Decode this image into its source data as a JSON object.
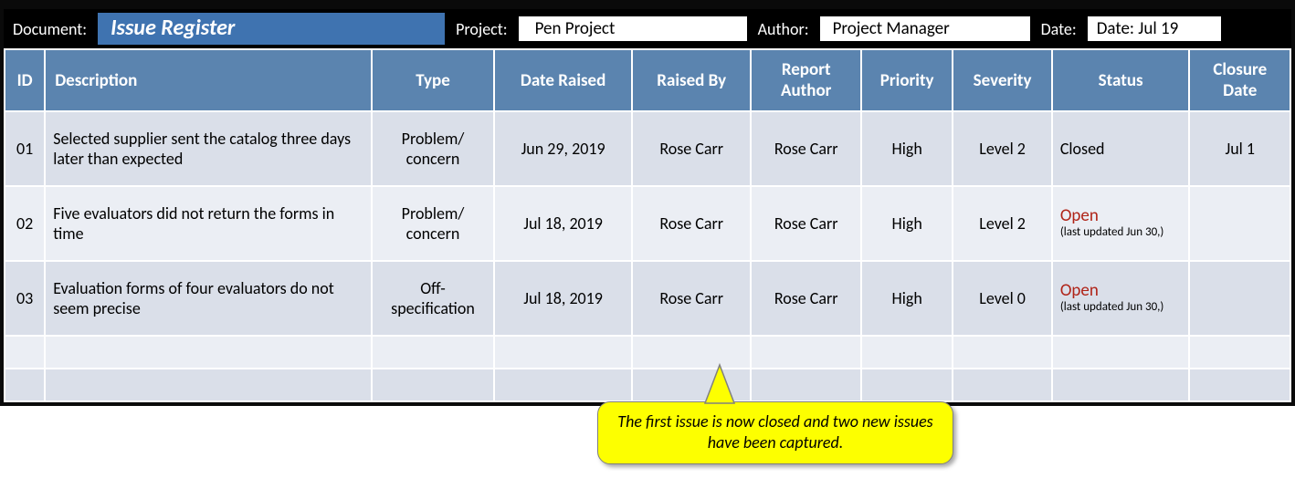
{
  "meta": {
    "document_label": "Document:",
    "document_title": "Issue Register",
    "project_label": "Project:",
    "project_value": "Pen Project",
    "author_label": "Author:",
    "author_value": "Project Manager",
    "date_label": "Date:",
    "date_value": "Date: Jul 19"
  },
  "columns": {
    "id": "ID",
    "description": "Description",
    "type": "Type",
    "date_raised": "Date Raised",
    "raised_by": "Raised By",
    "report_author": "Report Author",
    "priority": "Priority",
    "severity": "Severity",
    "status": "Status",
    "closure_date": "Closure Date"
  },
  "rows": [
    {
      "id": "01",
      "description": "Selected supplier sent the catalog three days later than expected",
      "type": "Problem/ concern",
      "date_raised": "Jun 29, 2019",
      "raised_by": "Rose Carr",
      "report_author": "Rose Carr",
      "priority": "High",
      "severity": "Level 2",
      "status_main": "Closed",
      "status_note": "",
      "status_open": false,
      "closure_date": "Jul 1"
    },
    {
      "id": "02",
      "description": "Five evaluators did not return the forms in time",
      "type": "Problem/ concern",
      "date_raised": "Jul 18, 2019",
      "raised_by": "Rose Carr",
      "report_author": "Rose Carr",
      "priority": "High",
      "severity": "Level 2",
      "status_main": "Open",
      "status_note": "(last updated Jun 30,)",
      "status_open": true,
      "closure_date": ""
    },
    {
      "id": "03",
      "description": "Evaluation forms of four evaluators do not seem precise",
      "type": "Off-specification",
      "date_raised": "Jul 18, 2019",
      "raised_by": "Rose Carr",
      "report_author": "Rose Carr",
      "priority": "High",
      "severity": "Level 0",
      "status_main": "Open",
      "status_note": "(last updated Jun 30,)",
      "status_open": true,
      "closure_date": ""
    }
  ],
  "callout": {
    "text": "The first issue is now closed and two new issues have been captured."
  },
  "styling": {
    "header_blue": "#5b84af",
    "title_blue": "#3f73b0",
    "row_alt1": "#dadfe9",
    "row_alt2": "#ebeef4",
    "cell_border": "#ffffff",
    "outer_border": "#0a0a0a",
    "callout_fill": "#fdff00",
    "callout_border": "#808080",
    "open_status_color": "#b02418",
    "header_fontsize_pt": 14,
    "body_fontsize_pt": 13,
    "type_fontsize_pt": 11,
    "font_family": "Calibri"
  }
}
